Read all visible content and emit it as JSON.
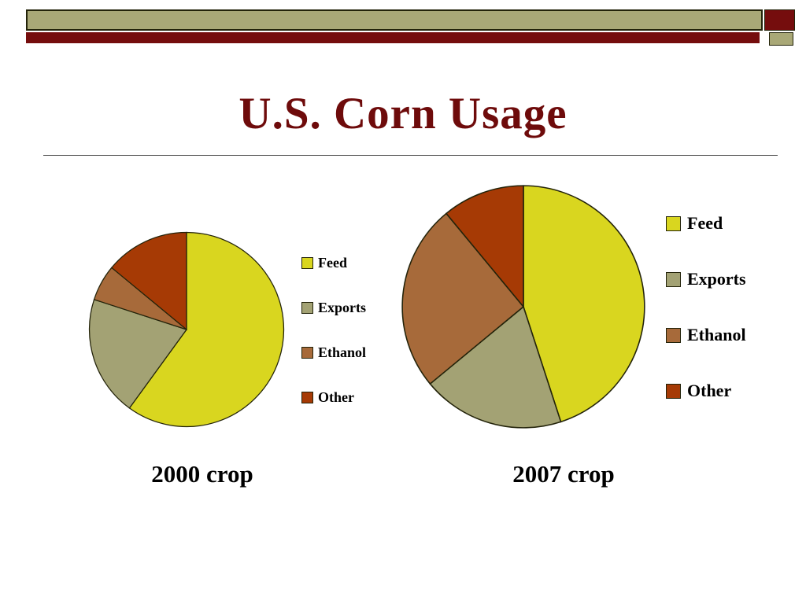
{
  "slide": {
    "title": "U.S. Corn Usage",
    "colors": {
      "title_text": "#6e0b0b",
      "banner_olive": "#a9a877",
      "banner_maroon": "#750d0d",
      "caption_text": "#000000"
    }
  },
  "chart_data": [
    {
      "type": "pie",
      "title": "2000 crop",
      "labels": [
        "Feed",
        "Exports",
        "Ethanol",
        "Other"
      ],
      "values": [
        60,
        20,
        6,
        14
      ],
      "colors": [
        "#d9d61f",
        "#a3a274",
        "#a76a3a",
        "#a63a05"
      ],
      "legend_position": "right",
      "start_angle_deg": -90,
      "direction": "clockwise"
    },
    {
      "type": "pie",
      "title": "2007 crop",
      "labels": [
        "Feed",
        "Exports",
        "Ethanol",
        "Other"
      ],
      "values": [
        45,
        19,
        25,
        11
      ],
      "colors": [
        "#d9d61f",
        "#a3a274",
        "#a76a3a",
        "#a63a05"
      ],
      "legend_position": "right",
      "start_angle_deg": -90,
      "direction": "clockwise"
    }
  ]
}
